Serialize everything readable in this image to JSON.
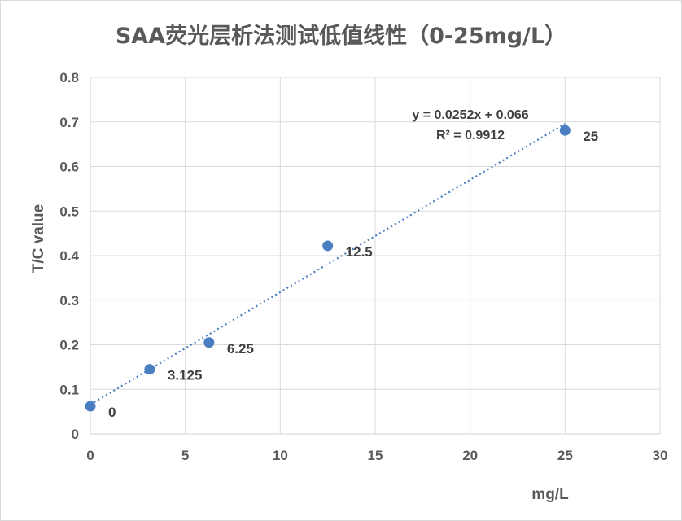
{
  "colors": {
    "series": "#4a7ec0",
    "text": "#595959",
    "grid": "#d9d9d9",
    "background": "#ffffff"
  },
  "chart_data": {
    "type": "scatter",
    "title": "SAA荧光层析法测试低值线性（0-25mg/L）",
    "xlabel": "mg/L",
    "ylabel": "T/C value",
    "xlim": [
      0,
      30
    ],
    "ylim": [
      0,
      0.8
    ],
    "x_ticks": [
      "0",
      "5",
      "10",
      "15",
      "20",
      "25",
      "30"
    ],
    "y_ticks": [
      "0",
      "0.1",
      "0.2",
      "0.3",
      "0.4",
      "0.5",
      "0.6",
      "0.7",
      "0.8"
    ],
    "grid": true,
    "legend": "none",
    "series": [
      {
        "x": [
          0,
          3.125,
          6.25,
          12.5,
          25
        ],
        "y": [
          0.062,
          0.145,
          0.205,
          0.422,
          0.681
        ],
        "point_labels": [
          "0",
          "3.125",
          "6.25",
          "12.5",
          "25"
        ]
      }
    ],
    "trendline": {
      "type": "linear",
      "slope": 0.0252,
      "intercept": 0.066,
      "equation": "y = 0.0252x + 0.066",
      "r_squared": "R² = 0.9912"
    }
  }
}
